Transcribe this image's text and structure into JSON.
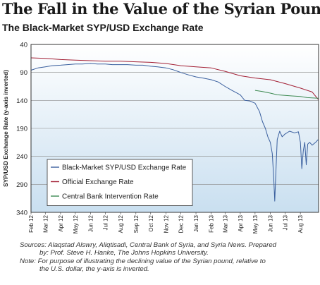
{
  "title": "The Fall in the Value of the Syrian Pound",
  "subtitle": "The Black-Market SYP/USD Exchange Rate",
  "notes": {
    "line1": "Sources: Alaqstad Alswry, Aliqtisadi, Central Bank of Syria, and Syria News. Prepared",
    "line2": "by: Prof. Steve H. Hanke, The Johns Hopkins University.",
    "line3": "Note: For purpose of illustrating the declining value of the Syrian pound, relative to",
    "line4": "the U.S. dollar, the y-axis is inverted."
  },
  "colors": {
    "black_market": "#3a5f9e",
    "official": "#a32035",
    "central_bank": "#3d8a52",
    "plot_top": "#ffffff",
    "plot_bottom": "#c9dff0"
  },
  "chart_data": {
    "type": "line",
    "title": "The Fall in the Value of the Syrian Pound",
    "subtitle": "The Black-Market SYP/USD Exchange Rate",
    "xlabel": "",
    "ylabel": "SYP/USD Exchange Rate (y-axis inverted)",
    "ylim": [
      40,
      340
    ],
    "y_inverted": true,
    "yticks": [
      40,
      90,
      140,
      190,
      240,
      290,
      340
    ],
    "xticks": [
      "Feb 12",
      "Mar 12",
      "Apr 12",
      "May 12",
      "Jun 12",
      "Jul 12",
      "Aug 12",
      "Sep 12",
      "Oct 12",
      "Nov 12",
      "Dec 12",
      "Jan 13",
      "Feb 13",
      "Mar 13",
      "Apr 13",
      "May 13",
      "Jun 13",
      "Jul 13",
      "Aug 13"
    ],
    "xlim": [
      "2012-02-01",
      "2013-09-07"
    ],
    "grid": "horizontal",
    "legend_position": "bottom-left",
    "series": [
      {
        "name": "Black-Market SYP/USD Exchange Rate",
        "color": "#3a5f9e",
        "points": [
          [
            "2012-02-01",
            86
          ],
          [
            "2012-02-15",
            82
          ],
          [
            "2012-03-01",
            80
          ],
          [
            "2012-03-15",
            78
          ],
          [
            "2012-04-01",
            77
          ],
          [
            "2012-04-15",
            76
          ],
          [
            "2012-05-01",
            75
          ],
          [
            "2012-05-15",
            75
          ],
          [
            "2012-06-01",
            74
          ],
          [
            "2012-06-15",
            75
          ],
          [
            "2012-07-01",
            75
          ],
          [
            "2012-07-15",
            76
          ],
          [
            "2012-08-01",
            76
          ],
          [
            "2012-08-15",
            76
          ],
          [
            "2012-09-01",
            77
          ],
          [
            "2012-09-15",
            77
          ],
          [
            "2012-10-01",
            79
          ],
          [
            "2012-10-15",
            80
          ],
          [
            "2012-11-01",
            82
          ],
          [
            "2012-11-15",
            85
          ],
          [
            "2012-12-01",
            90
          ],
          [
            "2012-12-15",
            94
          ],
          [
            "2013-01-01",
            98
          ],
          [
            "2013-01-15",
            100
          ],
          [
            "2013-02-01",
            103
          ],
          [
            "2013-02-15",
            107
          ],
          [
            "2013-03-01",
            115
          ],
          [
            "2013-03-15",
            122
          ],
          [
            "2013-04-01",
            130
          ],
          [
            "2013-04-10",
            140
          ],
          [
            "2013-04-20",
            141
          ],
          [
            "2013-05-01",
            145
          ],
          [
            "2013-05-10",
            160
          ],
          [
            "2013-05-16",
            178
          ],
          [
            "2013-05-22",
            190
          ],
          [
            "2013-05-27",
            205
          ],
          [
            "2013-06-01",
            215
          ],
          [
            "2013-06-05",
            235
          ],
          [
            "2013-06-08",
            280
          ],
          [
            "2013-06-10",
            320
          ],
          [
            "2013-06-12",
            275
          ],
          [
            "2013-06-15",
            210
          ],
          [
            "2013-06-20",
            195
          ],
          [
            "2013-06-25",
            205
          ],
          [
            "2013-07-01",
            200
          ],
          [
            "2013-07-10",
            195
          ],
          [
            "2013-07-20",
            198
          ],
          [
            "2013-07-28",
            196
          ],
          [
            "2013-08-01",
            215
          ],
          [
            "2013-08-04",
            262
          ],
          [
            "2013-08-07",
            230
          ],
          [
            "2013-08-10",
            215
          ],
          [
            "2013-08-13",
            255
          ],
          [
            "2013-08-16",
            218
          ],
          [
            "2013-08-20",
            215
          ],
          [
            "2013-08-25",
            220
          ],
          [
            "2013-09-01",
            215
          ],
          [
            "2013-09-06",
            210
          ]
        ]
      },
      {
        "name": "Official Exchange Rate",
        "color": "#a32035",
        "points": [
          [
            "2012-02-01",
            64
          ],
          [
            "2012-03-01",
            65
          ],
          [
            "2012-04-01",
            67
          ],
          [
            "2012-05-01",
            68
          ],
          [
            "2012-06-01",
            69
          ],
          [
            "2012-07-01",
            70
          ],
          [
            "2012-08-01",
            70
          ],
          [
            "2012-09-01",
            71
          ],
          [
            "2012-10-01",
            72
          ],
          [
            "2012-11-01",
            74
          ],
          [
            "2012-12-01",
            78
          ],
          [
            "2013-01-01",
            80
          ],
          [
            "2013-02-01",
            82
          ],
          [
            "2013-03-01",
            88
          ],
          [
            "2013-04-01",
            96
          ],
          [
            "2013-05-01",
            100
          ],
          [
            "2013-06-01",
            103
          ],
          [
            "2013-07-01",
            110
          ],
          [
            "2013-08-01",
            118
          ],
          [
            "2013-08-25",
            125
          ],
          [
            "2013-09-06",
            138
          ]
        ]
      },
      {
        "name": "Central Bank Intervention Rate",
        "color": "#3d8a52",
        "points": [
          [
            "2013-05-01",
            122
          ],
          [
            "2013-05-15",
            124
          ],
          [
            "2013-06-01",
            127
          ],
          [
            "2013-06-15",
            130
          ],
          [
            "2013-07-01",
            131
          ],
          [
            "2013-07-15",
            132
          ],
          [
            "2013-08-01",
            133
          ],
          [
            "2013-08-15",
            135
          ],
          [
            "2013-09-06",
            136
          ]
        ]
      }
    ]
  }
}
